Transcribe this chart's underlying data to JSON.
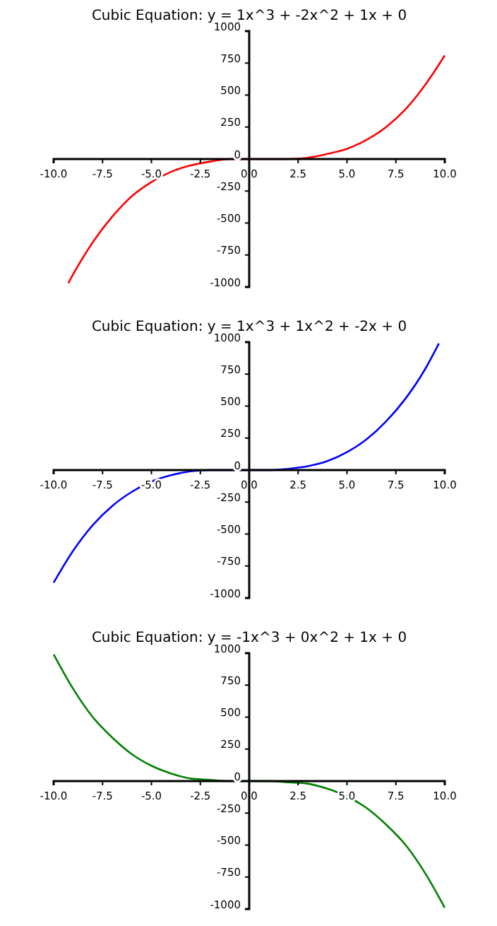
{
  "chart_data": [
    {
      "type": "line",
      "title": "Cubic Equation: y = 1x^3 + -2x^2 + 1x + 0",
      "xlim": [
        -10,
        10
      ],
      "ylim": [
        -1000,
        1000
      ],
      "xticks": [
        {
          "value": -10,
          "label": "-10.0"
        },
        {
          "value": -7.5,
          "label": "-7.5"
        },
        {
          "value": -5,
          "label": "-5.0"
        },
        {
          "value": -2.5,
          "label": "-2.5"
        },
        {
          "value": 0,
          "label": "0.0"
        },
        {
          "value": 2.5,
          "label": "2.5"
        },
        {
          "value": 5,
          "label": "5.0"
        },
        {
          "value": 7.5,
          "label": "7.5"
        },
        {
          "value": 10,
          "label": "10.0"
        }
      ],
      "yticks": [
        -1000,
        -750,
        -500,
        -250,
        0,
        250,
        500,
        750,
        1000
      ],
      "grid": false,
      "series": [
        {
          "color": "#ff0000",
          "x": [
            -9.25,
            -9,
            -8,
            -7,
            -6,
            -5,
            -4,
            -3,
            -2,
            -1,
            0,
            1,
            2,
            3,
            4,
            5,
            6,
            7,
            8,
            9,
            10
          ],
          "values": [
            -970,
            -900,
            -650,
            -450,
            -290,
            -180,
            -100,
            -50,
            -20,
            0,
            0,
            0,
            0,
            10,
            40,
            80,
            150,
            250,
            390,
            580,
            810
          ]
        }
      ]
    },
    {
      "type": "line",
      "title": "Cubic Equation: y = 1x^3 + 1x^2 + -2x + 0",
      "xlim": [
        -10,
        10
      ],
      "ylim": [
        -1000,
        1000
      ],
      "xticks": [
        {
          "value": -10,
          "label": "-10.0"
        },
        {
          "value": -7.5,
          "label": "-7.5"
        },
        {
          "value": -5,
          "label": "-5.0"
        },
        {
          "value": -2.5,
          "label": "-2.5"
        },
        {
          "value": 0,
          "label": "0.0"
        },
        {
          "value": 2.5,
          "label": "2.5"
        },
        {
          "value": 5,
          "label": "5.0"
        },
        {
          "value": 7.5,
          "label": "7.5"
        },
        {
          "value": 10,
          "label": "10.0"
        }
      ],
      "yticks": [
        -1000,
        -750,
        -500,
        -250,
        0,
        250,
        500,
        750,
        1000
      ],
      "grid": false,
      "series": [
        {
          "color": "#0000ff",
          "x": [
            -10,
            -9,
            -8,
            -7,
            -6,
            -5,
            -4,
            -3,
            -2,
            -1,
            0,
            1,
            2,
            3,
            4,
            5,
            6,
            7,
            8,
            9,
            9.7
          ],
          "values": [
            -880,
            -630,
            -430,
            -280,
            -170,
            -90,
            -40,
            -10,
            0,
            0,
            0,
            0,
            10,
            30,
            70,
            140,
            240,
            380,
            560,
            790,
            990
          ]
        }
      ]
    },
    {
      "type": "line",
      "title": "Cubic Equation: y = -1x^3 + 0x^2 + 1x + 0",
      "xlim": [
        -10,
        10
      ],
      "ylim": [
        -1000,
        1000
      ],
      "xticks": [
        {
          "value": -10,
          "label": "-10.0"
        },
        {
          "value": -7.5,
          "label": "-7.5"
        },
        {
          "value": -5,
          "label": "-5.0"
        },
        {
          "value": -2.5,
          "label": "-2.5"
        },
        {
          "value": 0,
          "label": "0.0"
        },
        {
          "value": 2.5,
          "label": "2.5"
        },
        {
          "value": 5,
          "label": "5.0"
        },
        {
          "value": 7.5,
          "label": "7.5"
        },
        {
          "value": 10,
          "label": "10.0"
        }
      ],
      "yticks": [
        -1000,
        -750,
        -500,
        -250,
        0,
        250,
        500,
        750,
        1000
      ],
      "grid": false,
      "series": [
        {
          "color": "#008000",
          "x": [
            -10,
            -9,
            -8,
            -7,
            -6,
            -5,
            -4,
            -3,
            -2,
            -1,
            0,
            1,
            2,
            3,
            4,
            5,
            6,
            7,
            8,
            9,
            10
          ],
          "values": [
            990,
            720,
            500,
            340,
            210,
            120,
            60,
            20,
            10,
            0,
            0,
            0,
            -10,
            -20,
            -60,
            -120,
            -210,
            -340,
            -500,
            -720,
            -990
          ]
        }
      ]
    }
  ]
}
